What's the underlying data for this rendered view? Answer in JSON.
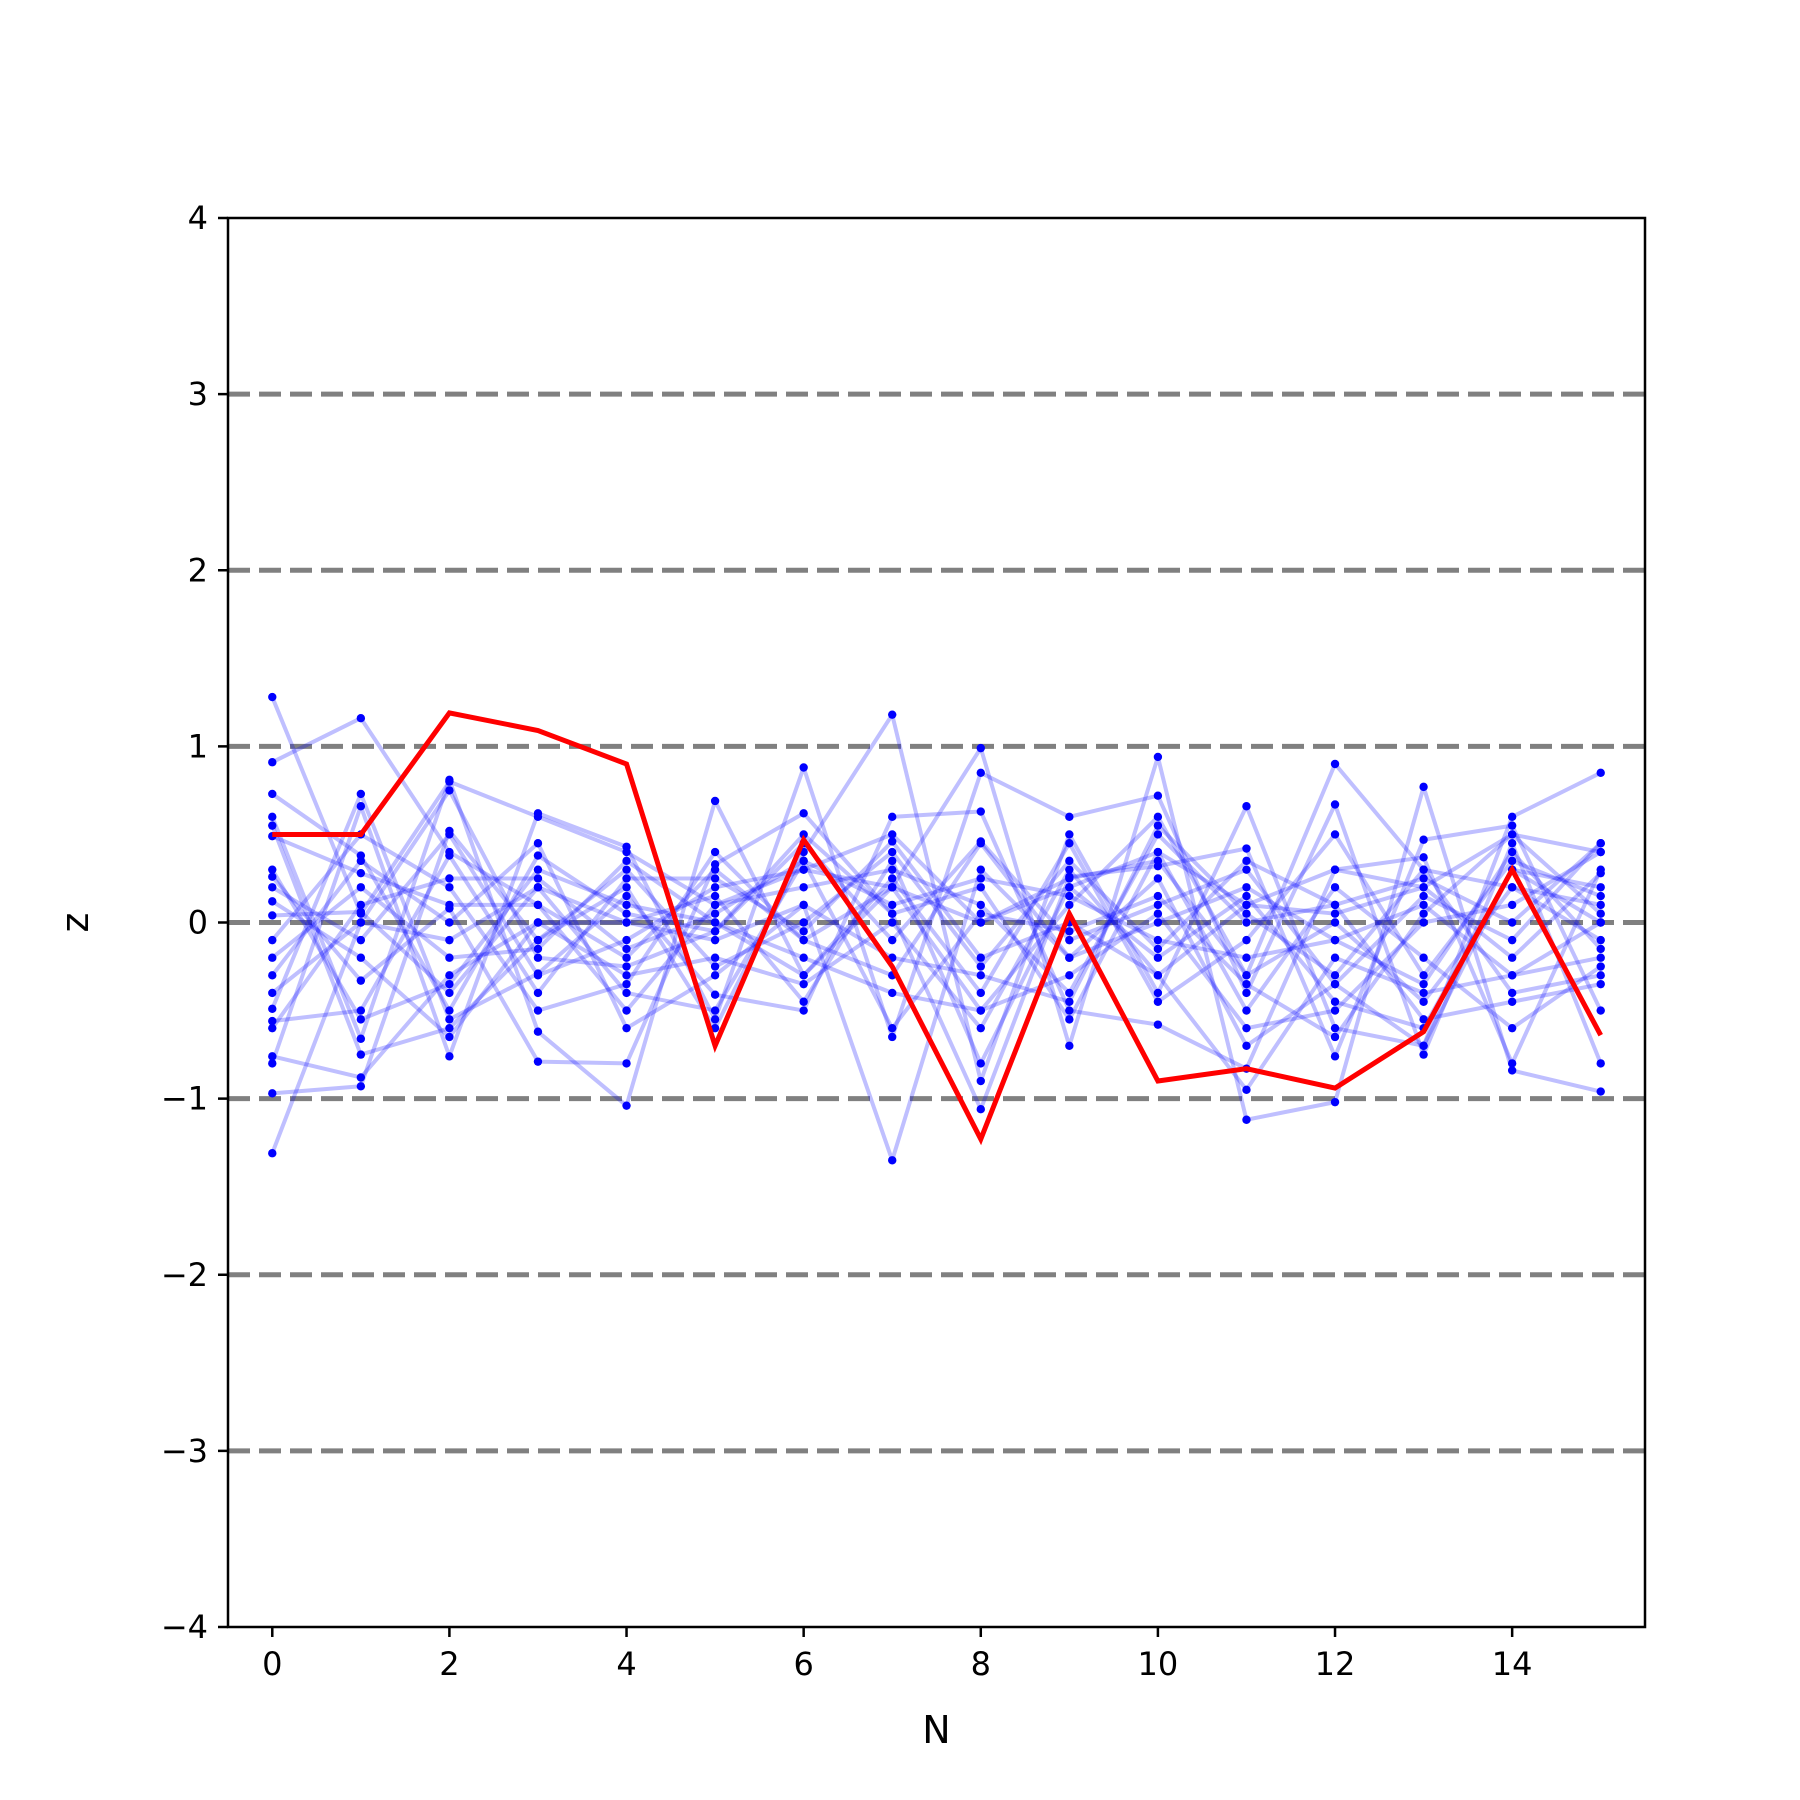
{
  "chart_data": {
    "type": "line",
    "xlabel": "N",
    "ylabel": "z",
    "xlim": [
      -0.5,
      15.5
    ],
    "ylim": [
      -4,
      4
    ],
    "xticks": [
      0,
      2,
      4,
      6,
      8,
      10,
      12,
      14
    ],
    "yticks": [
      -4,
      -3,
      -2,
      -1,
      0,
      1,
      2,
      3,
      4
    ],
    "ytick_labels": [
      "−4",
      "−3",
      "−2",
      "−1",
      "0",
      "1",
      "2",
      "3",
      "4"
    ],
    "reference_lines": [
      -3,
      -2,
      -1,
      0,
      1,
      2,
      3
    ],
    "colors": {
      "highlight": "#ff0000",
      "background_series": "#0000ff",
      "reference": "#808080",
      "axis": "#000000"
    },
    "highlight_series": {
      "x": [
        0,
        1,
        2,
        3,
        4,
        5,
        6,
        7,
        8,
        9,
        10,
        11,
        12,
        13,
        14,
        15
      ],
      "values": [
        0.5,
        0.5,
        1.19,
        1.09,
        0.9,
        -0.7,
        0.47,
        -0.25,
        -1.23,
        0.05,
        -0.9,
        -0.83,
        -0.94,
        -0.62,
        0.3,
        -0.64
      ]
    },
    "background_series": [
      {
        "values": [
          1.28,
          0.05,
          0.8,
          0.6,
          0.4,
          0.1,
          0.3,
          0.5,
          0.0,
          0.2,
          0.4,
          0.1,
          0.3,
          0.2,
          0.5,
          0.4
        ]
      },
      {
        "values": [
          -1.31,
          0.0,
          -0.1,
          0.2,
          0.0,
          -0.1,
          0.1,
          -1.35,
          0.3,
          -0.2,
          0.0,
          0.2,
          -0.1,
          0.1,
          -0.3,
          0.0
        ]
      },
      {
        "values": [
          0.91,
          1.16,
          0.4,
          0.1,
          -0.2,
          0.3,
          -0.1,
          0.2,
          -0.5,
          0.1,
          0.6,
          -0.3,
          0.9,
          0.3,
          0.2,
          -0.1
        ]
      },
      {
        "values": [
          -0.97,
          -0.93,
          0.52,
          -0.1,
          0.2,
          -0.6,
          0.4,
          1.18,
          -0.9,
          0.5,
          -0.4,
          0.66,
          -0.6,
          -0.7,
          0.6,
          0.85
        ]
      },
      {
        "values": [
          0.6,
          -0.66,
          0.81,
          -0.62,
          -1.04,
          0.69,
          -0.3,
          0.2,
          0.99,
          -0.7,
          0.94,
          -1.12,
          -1.02,
          0.77,
          -0.84,
          -0.96
        ]
      },
      {
        "values": [
          -0.8,
          0.66,
          -0.76,
          0.62,
          0.43,
          -0.55,
          0.88,
          -0.65,
          0.85,
          0.6,
          0.72,
          -0.4,
          0.67,
          -0.75,
          0.45,
          -0.8
        ]
      },
      {
        "values": [
          0.26,
          -0.33,
          0.08,
          -0.79,
          -0.8,
          0.33,
          0.62,
          0.05,
          -1.06,
          0.26,
          0.32,
          0.42,
          -0.76,
          0.47,
          0.55,
          -0.5
        ]
      },
      {
        "values": [
          -0.49,
          0.73,
          -0.55,
          -0.29,
          0.15,
          -0.41,
          -0.5,
          0.6,
          0.63,
          -0.5,
          -0.58,
          -0.83,
          0.3,
          0.37,
          -0.8,
          0.3
        ]
      },
      {
        "values": [
          0.49,
          0.28,
          0.1,
          0.1,
          -0.5,
          0.1,
          0.2,
          0.3,
          0.1,
          -0.4,
          0.5,
          0.0,
          0.1,
          0.25,
          0.0,
          0.45
        ]
      },
      {
        "values": [
          -0.76,
          -0.88,
          -0.3,
          0.0,
          -0.3,
          -0.2,
          -0.35,
          0.0,
          -0.6,
          0.3,
          -0.3,
          -0.95,
          -0.2,
          -0.4,
          -0.3,
          -0.2
        ]
      },
      {
        "values": [
          0.73,
          0.38,
          -0.5,
          0.38,
          0.05,
          -0.05,
          0.45,
          -0.1,
          0.46,
          -0.1,
          0.1,
          0.3,
          -0.35,
          -0.7,
          0.3,
          0.0
        ]
      },
      {
        "values": [
          -0.56,
          -0.5,
          0.38,
          -0.4,
          0.25,
          0.25,
          -0.05,
          0.46,
          -0.2,
          0.0,
          -0.3,
          0.1,
          0.05,
          0.2,
          -0.2,
          0.28
        ]
      },
      {
        "values": [
          0.04,
          0.06,
          -0.4,
          0.2,
          -0.4,
          -0.5,
          0.35,
          0.1,
          0.25,
          0.15,
          -0.1,
          -0.2,
          -0.1,
          -0.35,
          0.4,
          -0.15
        ]
      },
      {
        "values": [
          -0.2,
          0.2,
          -0.2,
          -0.15,
          0.35,
          0.0,
          -0.2,
          -0.4,
          -0.5,
          -0.3,
          0.05,
          -0.6,
          -0.5,
          0.0,
          0.1,
          0.4
        ]
      },
      {
        "values": [
          0.2,
          -0.1,
          0.5,
          -0.3,
          -0.1,
          0.2,
          0.3,
          0.2,
          0.0,
          0.25,
          0.35,
          -0.3,
          0.0,
          -0.45,
          0.2,
          0.1
        ]
      },
      {
        "values": [
          -0.3,
          0.35,
          0.0,
          0.45,
          -0.6,
          -0.3,
          0.1,
          -0.2,
          -0.3,
          -0.45,
          0.55,
          0.05,
          -0.3,
          0.3,
          -0.4,
          -0.3
        ]
      },
      {
        "values": [
          0.12,
          -0.2,
          -0.65,
          0.0,
          0.0,
          0.15,
          -0.45,
          0.35,
          -0.8,
          0.2,
          -0.2,
          0.15,
          -0.45,
          -0.6,
          0.3,
          0.2
        ]
      },
      {
        "values": [
          -0.4,
          0.0,
          0.75,
          -0.2,
          -0.25,
          -0.05,
          0.5,
          0.05,
          0.2,
          -0.55,
          0.4,
          -0.5,
          0.2,
          -0.2,
          -0.6,
          -0.25
        ]
      },
      {
        "values": [
          0.3,
          -0.55,
          -0.35,
          0.3,
          0.1,
          0.0,
          -0.3,
          0.25,
          -0.4,
          0.45,
          -0.45,
          -0.1,
          0.5,
          -0.3,
          0.35,
          0.15
        ]
      },
      {
        "values": [
          -0.1,
          0.5,
          0.2,
          -0.5,
          -0.35,
          0.4,
          -0.1,
          -0.3,
          0.45,
          -0.2,
          0.25,
          -0.7,
          -0.35,
          0.15,
          -0.1,
          0.45
        ]
      },
      {
        "values": [
          0.55,
          -0.75,
          -0.6,
          -0.1,
          0.3,
          -0.25,
          0.0,
          0.4,
          -0.25,
          0.35,
          -0.15,
          0.35,
          0.1,
          -0.55,
          -0.45,
          -0.35
        ]
      },
      {
        "values": [
          -0.6,
          0.1,
          0.25,
          0.25,
          -0.15,
          0.05,
          0.35,
          -0.6,
          0.05,
          -0.05,
          0.15,
          -0.35,
          -0.65,
          0.05,
          0.5,
          0.05
        ]
      }
    ]
  }
}
